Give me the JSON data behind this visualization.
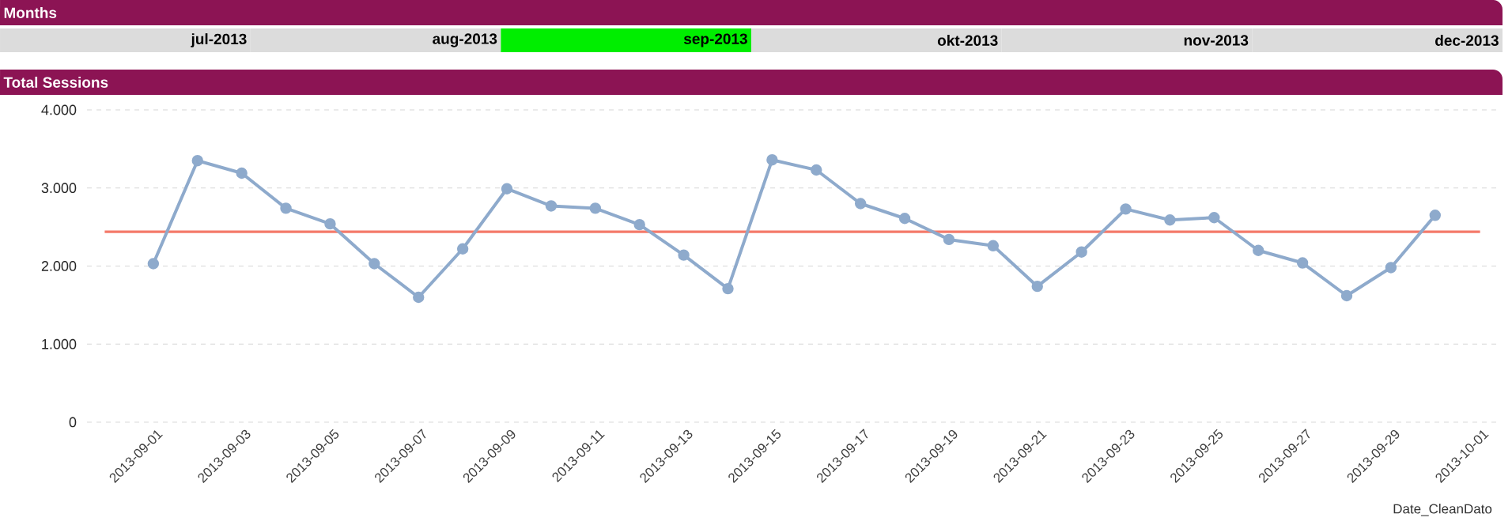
{
  "chart_data": [
    {
      "type": "other",
      "title": "Months",
      "categories": [
        "jul-2013",
        "aug-2013",
        "sep-2013",
        "okt-2013",
        "nov-2013",
        "dec-2013"
      ],
      "colors": [
        "#dcdcdc",
        "#dcdcdc",
        "#00ee00",
        "#dcdcdc",
        "#dcdcdc",
        "#dcdcdc"
      ]
    },
    {
      "type": "line",
      "title": "Total Sessions",
      "xlabel": "Date_CleanDato",
      "x": [
        "2013-09-01",
        "2013-09-02",
        "2013-09-03",
        "2013-09-04",
        "2013-09-05",
        "2013-09-06",
        "2013-09-07",
        "2013-09-08",
        "2013-09-09",
        "2013-09-10",
        "2013-09-11",
        "2013-09-12",
        "2013-09-13",
        "2013-09-14",
        "2013-09-15",
        "2013-09-16",
        "2013-09-17",
        "2013-09-18",
        "2013-09-19",
        "2013-09-20",
        "2013-09-21",
        "2013-09-22",
        "2013-09-23",
        "2013-09-24",
        "2013-09-25",
        "2013-09-26",
        "2013-09-27",
        "2013-09-28",
        "2013-09-29",
        "2013-09-30"
      ],
      "values": [
        2030,
        3350,
        3190,
        2740,
        2540,
        2030,
        1600,
        2220,
        2990,
        2770,
        2740,
        2530,
        2140,
        1710,
        3360,
        3230,
        2800,
        2610,
        2340,
        2260,
        1740,
        2180,
        2730,
        2590,
        2620,
        2200,
        2040,
        1620,
        1980,
        2650
      ],
      "color": "#8eaacc",
      "marker": "circle",
      "grid": "y",
      "xlim": [
        "2013-08-30T12:00",
        "2013-10-01T10:00"
      ],
      "xticks": [
        "2013-09-01",
        "2013-09-03",
        "2013-09-05",
        "2013-09-07",
        "2013-09-09",
        "2013-09-11",
        "2013-09-13",
        "2013-09-15",
        "2013-09-17",
        "2013-09-19",
        "2013-09-21",
        "2013-09-23",
        "2013-09-25",
        "2013-09-27",
        "2013-09-29",
        "2013-10-01"
      ],
      "ylim": [
        0,
        4000
      ],
      "yticks": [
        0,
        {
          "value": 1000,
          "label": "1.000"
        },
        {
          "value": 2000,
          "label": "2.000"
        },
        {
          "value": 3000,
          "label": "3.000"
        },
        {
          "value": 4000,
          "label": "4.000"
        }
      ],
      "ref_lines": [
        {
          "axis": "y",
          "value": 2440,
          "color": "#f47a6a"
        }
      ]
    }
  ]
}
